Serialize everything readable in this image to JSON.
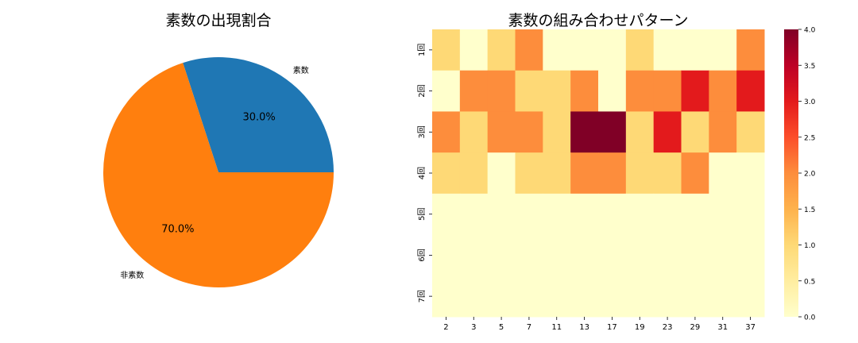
{
  "chart_data": [
    {
      "type": "pie",
      "title": "素数の出現割合",
      "labels": [
        "素数",
        "非素数"
      ],
      "values": [
        30.0,
        70.0
      ],
      "autopct": [
        "30.0%",
        "70.0%"
      ],
      "colors": [
        "#1f77b4",
        "#ff7f0e"
      ],
      "startangle": 0,
      "legend": "none"
    },
    {
      "type": "heatmap",
      "title": "素数の組み合わせパターン",
      "x": [
        "2",
        "3",
        "5",
        "7",
        "11",
        "13",
        "17",
        "19",
        "23",
        "29",
        "31",
        "37"
      ],
      "y": [
        "1回",
        "2回",
        "3回",
        "4回",
        "5回",
        "6回",
        "7回"
      ],
      "values": [
        [
          1,
          0,
          1,
          2,
          0,
          0,
          0,
          1,
          0,
          0,
          0,
          2
        ],
        [
          0,
          2,
          2,
          1,
          1,
          2,
          0,
          2,
          2,
          3,
          2,
          3
        ],
        [
          2,
          1,
          2,
          2,
          1,
          4,
          4,
          1,
          3,
          1,
          2,
          1
        ],
        [
          1,
          1,
          0,
          1,
          1,
          2,
          2,
          1,
          1,
          2,
          0,
          0
        ],
        [
          0,
          0,
          0,
          0,
          0,
          0,
          0,
          0,
          0,
          0,
          0,
          0
        ],
        [
          0,
          0,
          0,
          0,
          0,
          0,
          0,
          0,
          0,
          0,
          0,
          0
        ],
        [
          0,
          0,
          0,
          0,
          0,
          0,
          0,
          0,
          0,
          0,
          0,
          0
        ]
      ],
      "colormap": "YlOrRd",
      "colorbar": {
        "min": 0.0,
        "max": 4.0,
        "ticks": [
          "0.0",
          "0.5",
          "1.0",
          "1.5",
          "2.0",
          "2.5",
          "3.0",
          "3.5",
          "4.0"
        ]
      },
      "xlabel": "",
      "ylabel": ""
    }
  ],
  "colors": {
    "ylorrd": [
      "#ffffcc",
      "#ffeda0",
      "#fed976",
      "#feb24c",
      "#fd8d3c",
      "#fc4e2a",
      "#e31a1c",
      "#bd0026",
      "#800026"
    ]
  }
}
